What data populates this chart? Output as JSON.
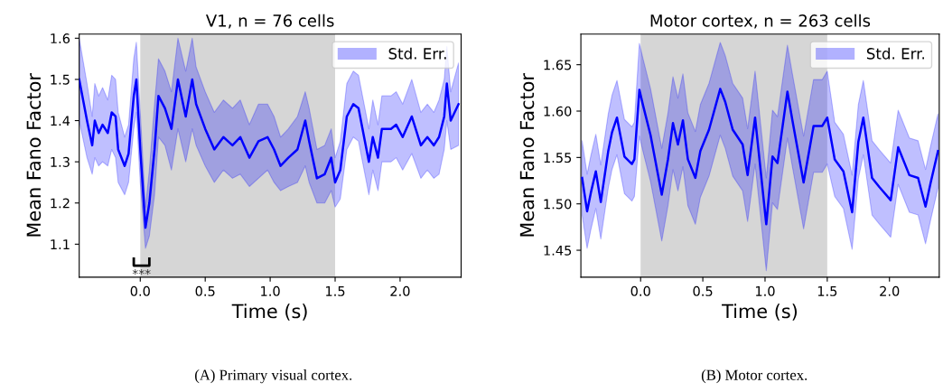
{
  "chart_data": [
    {
      "type": "line",
      "title": "V1, n = 76 cells",
      "xlabel": "Time (s)",
      "ylabel": "Mean Fano Factor",
      "xlim": [
        -0.47,
        2.47
      ],
      "ylim": [
        1.02,
        1.61
      ],
      "xticks": [
        {
          "value": 0,
          "label": "0.0"
        },
        {
          "value": 0.5,
          "label": "0.5"
        },
        {
          "value": 1,
          "label": "1.0"
        },
        {
          "value": 1.5,
          "label": "1.5"
        },
        {
          "value": 2,
          "label": "2.0"
        }
      ],
      "yticks": [
        1.1,
        1.2,
        1.3,
        1.4,
        1.5,
        1.6
      ],
      "bands": [
        {
          "axis": "x",
          "from": 0,
          "to": 1.5,
          "color": "#d6d6d6"
        }
      ],
      "legend": "top right",
      "grid": false,
      "annotations": [
        {
          "text": "***",
          "x": 0.01,
          "y": 1.04
        },
        "(A) Primary visual cortex."
      ],
      "series": [
        {
          "name": "Std. Err.",
          "color": "#0000ff",
          "x": [
            -0.47,
            -0.41,
            -0.39,
            -0.37,
            -0.35,
            -0.32,
            -0.29,
            -0.25,
            -0.22,
            -0.19,
            -0.17,
            -0.12,
            -0.09,
            -0.05,
            -0.03,
            0.0,
            0.04,
            0.07,
            0.11,
            0.14,
            0.19,
            0.24,
            0.29,
            0.35,
            0.4,
            0.43,
            0.5,
            0.57,
            0.64,
            0.71,
            0.77,
            0.84,
            0.91,
            0.98,
            1.03,
            1.08,
            1.14,
            1.21,
            1.27,
            1.3,
            1.36,
            1.42,
            1.47,
            1.5,
            1.54,
            1.59,
            1.64,
            1.68,
            1.76,
            1.79,
            1.83,
            1.86,
            1.93,
            1.97,
            2.02,
            2.09,
            2.16,
            2.21,
            2.26,
            2.3,
            2.34,
            2.36,
            2.39,
            2.45
          ],
          "values": [
            1.5,
            1.4,
            1.37,
            1.34,
            1.4,
            1.37,
            1.39,
            1.37,
            1.42,
            1.41,
            1.33,
            1.29,
            1.32,
            1.46,
            1.5,
            1.33,
            1.14,
            1.2,
            1.33,
            1.46,
            1.43,
            1.38,
            1.5,
            1.41,
            1.5,
            1.44,
            1.38,
            1.33,
            1.36,
            1.34,
            1.36,
            1.31,
            1.35,
            1.36,
            1.33,
            1.29,
            1.31,
            1.33,
            1.4,
            1.35,
            1.26,
            1.27,
            1.31,
            1.25,
            1.28,
            1.41,
            1.44,
            1.43,
            1.3,
            1.36,
            1.31,
            1.38,
            1.38,
            1.39,
            1.36,
            1.41,
            1.34,
            1.36,
            1.34,
            1.36,
            1.41,
            1.49,
            1.4,
            1.44
          ],
          "lower": [
            1.4,
            1.31,
            1.29,
            1.27,
            1.31,
            1.29,
            1.3,
            1.29,
            1.33,
            1.31,
            1.25,
            1.22,
            1.25,
            1.38,
            1.42,
            1.25,
            1.09,
            1.12,
            1.22,
            1.36,
            1.34,
            1.28,
            1.38,
            1.3,
            1.38,
            1.34,
            1.29,
            1.25,
            1.28,
            1.26,
            1.27,
            1.24,
            1.26,
            1.28,
            1.25,
            1.23,
            1.24,
            1.25,
            1.29,
            1.25,
            1.2,
            1.2,
            1.23,
            1.19,
            1.21,
            1.33,
            1.36,
            1.35,
            1.22,
            1.28,
            1.23,
            1.3,
            1.3,
            1.31,
            1.28,
            1.32,
            1.26,
            1.28,
            1.26,
            1.27,
            1.33,
            1.4,
            1.33,
            1.34
          ],
          "upper": [
            1.6,
            1.49,
            1.45,
            1.41,
            1.49,
            1.46,
            1.48,
            1.45,
            1.51,
            1.5,
            1.42,
            1.36,
            1.39,
            1.55,
            1.59,
            1.42,
            1.19,
            1.28,
            1.44,
            1.55,
            1.52,
            1.47,
            1.6,
            1.52,
            1.6,
            1.53,
            1.47,
            1.42,
            1.45,
            1.43,
            1.45,
            1.39,
            1.44,
            1.44,
            1.41,
            1.36,
            1.38,
            1.41,
            1.47,
            1.43,
            1.33,
            1.34,
            1.38,
            1.31,
            1.35,
            1.49,
            1.52,
            1.51,
            1.38,
            1.45,
            1.39,
            1.46,
            1.46,
            1.47,
            1.44,
            1.5,
            1.42,
            1.44,
            1.42,
            1.45,
            1.5,
            1.58,
            1.47,
            1.54
          ]
        }
      ]
    },
    {
      "type": "line",
      "title": "Motor cortex, n = 263 cells",
      "xlabel": "Time (s)",
      "ylabel": "Mean Fano Factor",
      "xlim": [
        -0.48,
        2.4
      ],
      "ylim": [
        1.421,
        1.683
      ],
      "xticks": [
        {
          "value": 0,
          "label": "0.0"
        },
        {
          "value": 0.5,
          "label": "0.5"
        },
        {
          "value": 1,
          "label": "1.0"
        },
        {
          "value": 1.5,
          "label": "1.5"
        },
        {
          "value": 2,
          "label": "2.0"
        }
      ],
      "yticks": [
        {
          "value": 1.45,
          "label": "1.45"
        },
        {
          "value": 1.5,
          "label": "1.50"
        },
        {
          "value": 1.55,
          "label": "1.55"
        },
        {
          "value": 1.6,
          "label": "1.60"
        },
        {
          "value": 1.65,
          "label": "1.65"
        }
      ],
      "bands": [
        {
          "axis": "x",
          "from": 0,
          "to": 1.5,
          "color": "#d6d6d6"
        }
      ],
      "legend": "top right",
      "grid": false,
      "annotations": [
        "(B) Motor cortex."
      ],
      "series": [
        {
          "name": "Std. Err.",
          "color": "#0000ff",
          "x": [
            -0.47,
            -0.43,
            -0.4,
            -0.36,
            -0.32,
            -0.26,
            -0.23,
            -0.19,
            -0.13,
            -0.07,
            -0.05,
            -0.01,
            0.02,
            0.08,
            0.17,
            0.22,
            0.26,
            0.3,
            0.34,
            0.38,
            0.44,
            0.48,
            0.55,
            0.64,
            0.68,
            0.74,
            0.82,
            0.86,
            0.92,
            1.01,
            1.06,
            1.1,
            1.18,
            1.22,
            1.31,
            1.39,
            1.46,
            1.5,
            1.56,
            1.63,
            1.7,
            1.75,
            1.79,
            1.86,
            1.92,
            2.01,
            2.07,
            2.16,
            2.23,
            2.29,
            2.33,
            2.39
          ],
          "values": [
            1.528,
            1.492,
            1.512,
            1.535,
            1.502,
            1.557,
            1.577,
            1.593,
            1.551,
            1.543,
            1.548,
            1.623,
            1.606,
            1.574,
            1.51,
            1.548,
            1.587,
            1.564,
            1.59,
            1.548,
            1.528,
            1.557,
            1.58,
            1.624,
            1.61,
            1.58,
            1.564,
            1.531,
            1.593,
            1.478,
            1.551,
            1.544,
            1.621,
            1.59,
            1.523,
            1.584,
            1.584,
            1.593,
            1.548,
            1.535,
            1.491,
            1.567,
            1.593,
            1.528,
            1.518,
            1.504,
            1.561,
            1.531,
            1.528,
            1.497,
            1.522,
            1.557
          ],
          "lower": [
            1.488,
            1.452,
            1.472,
            1.495,
            1.462,
            1.517,
            1.537,
            1.553,
            1.511,
            1.503,
            1.508,
            1.573,
            1.556,
            1.524,
            1.46,
            1.498,
            1.537,
            1.514,
            1.54,
            1.498,
            1.478,
            1.507,
            1.53,
            1.574,
            1.56,
            1.53,
            1.514,
            1.481,
            1.543,
            1.428,
            1.501,
            1.494,
            1.571,
            1.54,
            1.473,
            1.534,
            1.534,
            1.543,
            1.508,
            1.495,
            1.451,
            1.527,
            1.553,
            1.488,
            1.478,
            1.464,
            1.521,
            1.491,
            1.488,
            1.457,
            1.482,
            1.517
          ],
          "upper": [
            1.568,
            1.532,
            1.552,
            1.575,
            1.542,
            1.597,
            1.617,
            1.633,
            1.591,
            1.583,
            1.588,
            1.673,
            1.656,
            1.624,
            1.56,
            1.598,
            1.637,
            1.614,
            1.64,
            1.598,
            1.578,
            1.607,
            1.63,
            1.674,
            1.66,
            1.63,
            1.614,
            1.581,
            1.643,
            1.528,
            1.601,
            1.594,
            1.671,
            1.64,
            1.573,
            1.634,
            1.634,
            1.643,
            1.588,
            1.575,
            1.531,
            1.607,
            1.633,
            1.568,
            1.558,
            1.544,
            1.601,
            1.571,
            1.568,
            1.537,
            1.562,
            1.597
          ]
        }
      ]
    }
  ]
}
